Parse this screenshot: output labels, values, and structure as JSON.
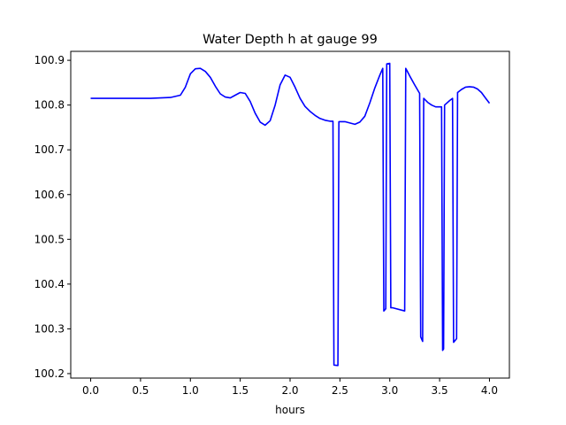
{
  "chart_data": {
    "type": "line",
    "title": "Water Depth h at gauge 99",
    "xlabel": "hours",
    "ylabel": "",
    "xlim": [
      -0.2,
      4.2
    ],
    "ylim": [
      100.19,
      100.92
    ],
    "xticks": [
      0.0,
      0.5,
      1.0,
      1.5,
      2.0,
      2.5,
      3.0,
      3.5,
      4.0
    ],
    "xtick_labels": [
      "0.0",
      "0.5",
      "1.0",
      "1.5",
      "2.0",
      "2.5",
      "3.0",
      "3.5",
      "4.0"
    ],
    "yticks": [
      100.2,
      100.3,
      100.4,
      100.5,
      100.6,
      100.7,
      100.8,
      100.9
    ],
    "ytick_labels": [
      "100.2",
      "100.3",
      "100.4",
      "100.5",
      "100.6",
      "100.7",
      "100.8",
      "100.9"
    ],
    "grid": false,
    "series": [
      {
        "color": "#0000ff",
        "x": [
          0.0,
          0.2,
          0.4,
          0.6,
          0.8,
          0.9,
          0.95,
          1.0,
          1.05,
          1.1,
          1.15,
          1.2,
          1.25,
          1.3,
          1.35,
          1.4,
          1.45,
          1.5,
          1.55,
          1.6,
          1.65,
          1.7,
          1.75,
          1.8,
          1.85,
          1.9,
          1.95,
          2.0,
          2.05,
          2.1,
          2.15,
          2.2,
          2.25,
          2.3,
          2.35,
          2.4,
          2.43,
          2.44,
          2.48,
          2.49,
          2.55,
          2.6,
          2.65,
          2.7,
          2.75,
          2.8,
          2.85,
          2.9,
          2.93,
          2.94,
          2.96,
          2.97,
          3.0,
          3.01,
          3.03,
          3.15,
          3.16,
          3.17,
          3.2,
          3.25,
          3.3,
          3.31,
          3.33,
          3.34,
          3.38,
          3.42,
          3.46,
          3.5,
          3.52,
          3.53,
          3.54,
          3.55,
          3.6,
          3.63,
          3.64,
          3.67,
          3.68,
          3.72,
          3.76,
          3.8,
          3.84,
          3.88,
          3.92,
          3.96,
          4.0
        ],
        "y": [
          100.815,
          100.815,
          100.815,
          100.815,
          100.817,
          100.822,
          100.84,
          100.87,
          100.881,
          100.882,
          100.875,
          100.862,
          100.842,
          100.825,
          100.818,
          100.816,
          100.822,
          100.828,
          100.826,
          100.808,
          100.782,
          100.762,
          100.755,
          100.765,
          100.8,
          100.845,
          100.867,
          100.862,
          100.84,
          100.815,
          100.797,
          100.786,
          100.777,
          100.77,
          100.766,
          100.764,
          100.764,
          100.219,
          100.218,
          100.763,
          100.763,
          100.76,
          100.757,
          100.762,
          100.775,
          100.805,
          100.838,
          100.867,
          100.882,
          100.34,
          100.345,
          100.892,
          100.893,
          100.347,
          100.347,
          100.34,
          100.882,
          100.878,
          100.865,
          100.845,
          100.826,
          100.282,
          100.272,
          100.815,
          100.806,
          100.8,
          100.796,
          100.796,
          100.796,
          100.252,
          100.255,
          100.8,
          100.81,
          100.815,
          100.27,
          100.278,
          100.828,
          100.835,
          100.84,
          100.841,
          100.84,
          100.836,
          100.828,
          100.816,
          100.804
        ]
      }
    ]
  }
}
